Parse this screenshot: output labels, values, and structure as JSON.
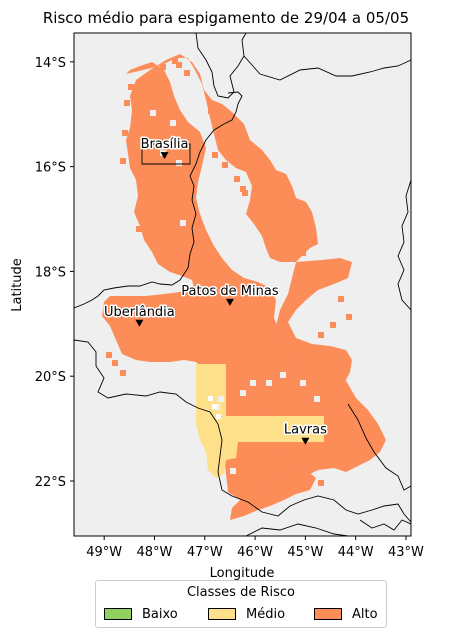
{
  "title": "Risco médio para espigamento de 29/04 a 05/05",
  "xlabel": "Longitude",
  "ylabel": "Latitude",
  "x_ticks": [
    {
      "value": -49,
      "label": "49°W"
    },
    {
      "value": -48,
      "label": "48°W"
    },
    {
      "value": -47,
      "label": "47°W"
    },
    {
      "value": -46,
      "label": "46°W"
    },
    {
      "value": -45,
      "label": "45°W"
    },
    {
      "value": -44,
      "label": "44°W"
    },
    {
      "value": -43,
      "label": "43°W"
    }
  ],
  "y_ticks": [
    {
      "value": -14,
      "label": "14°S"
    },
    {
      "value": -16,
      "label": "16°S"
    },
    {
      "value": -18,
      "label": "18°S"
    },
    {
      "value": -20,
      "label": "20°S"
    },
    {
      "value": -22,
      "label": "22°S"
    }
  ],
  "extent": {
    "lon": [
      -49.6,
      -42.9
    ],
    "lat": [
      -23.05,
      -13.45
    ]
  },
  "colors": {
    "ocean": "#efefef",
    "alto": "#fc8d59",
    "medio": "#fee08b",
    "baixo": "#91cf60",
    "border": "#000000"
  },
  "cities": [
    {
      "name": "Brasília",
      "lon": -47.8,
      "lat": -15.8
    },
    {
      "name": "Patos de Minas",
      "lon": -46.5,
      "lat": -18.6
    },
    {
      "name": "Uberlândia",
      "lon": -48.3,
      "lat": -19.0
    },
    {
      "name": "Lavras",
      "lon": -45.0,
      "lat": -21.25
    }
  ],
  "legend": {
    "title": "Classes de Risco",
    "items": [
      {
        "label": "Baixo",
        "color": "#91cf60"
      },
      {
        "label": "Médio",
        "color": "#fee08b"
      },
      {
        "label": "Alto",
        "color": "#fc8d59"
      }
    ]
  }
}
